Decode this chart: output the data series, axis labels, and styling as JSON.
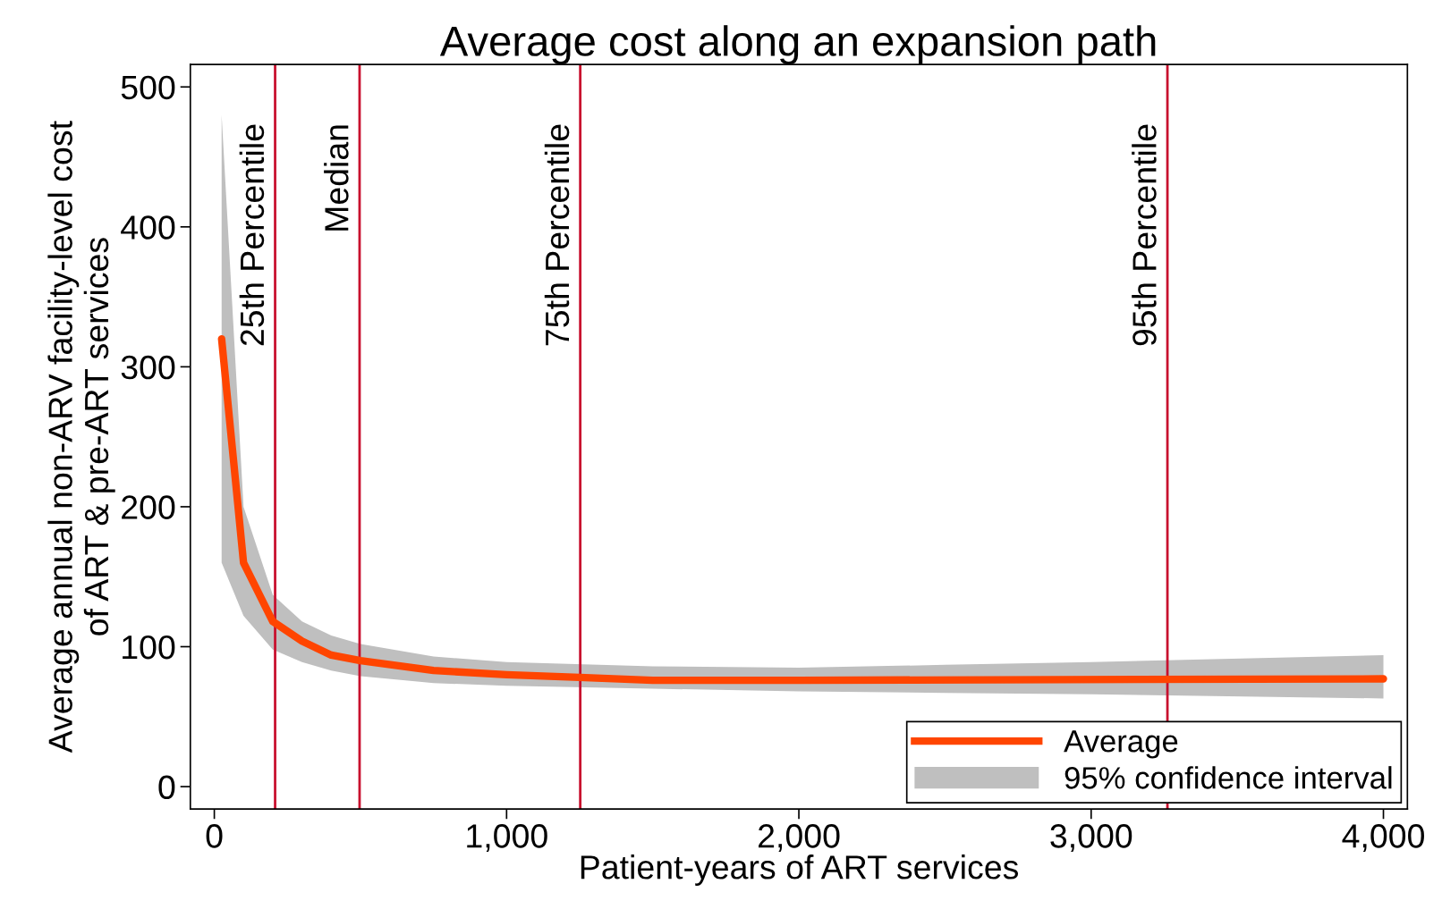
{
  "chart_data": {
    "type": "line",
    "title": "Average cost along an expansion path",
    "xlabel": "Patient-years of ART services",
    "ylabel": "Average annual non-ARV facility-level cost\nof ART & pre-ART services",
    "xlim": [
      -82,
      4082
    ],
    "ylim": [
      -16,
      516
    ],
    "xticks": [
      0,
      {
        "value": 1000,
        "label": "1,000"
      },
      {
        "value": 2000,
        "label": "2,000"
      },
      {
        "value": 3000,
        "label": "3,000"
      },
      {
        "value": 4000,
        "label": "4,000"
      }
    ],
    "yticks": [
      0,
      100,
      200,
      300,
      400,
      500
    ],
    "series": [
      {
        "type": "area",
        "name": "95% confidence interval",
        "color": "#bfbfbf",
        "x": [
          25,
          100,
          200,
          300,
          400,
          500,
          750,
          1000,
          1500,
          2000,
          2500,
          3000,
          4000
        ],
        "values": [
          null,
          null,
          null,
          null,
          null,
          null,
          null,
          null,
          null,
          null,
          null,
          null,
          null
        ],
        "lower": [
          160,
          122,
          98,
          89,
          83,
          79,
          74,
          72,
          70,
          68,
          67,
          66,
          63
        ],
        "upper": [
          480,
          200,
          137,
          118,
          108,
          102,
          93,
          89,
          86,
          85,
          87,
          89,
          94
        ]
      },
      {
        "name": "Average",
        "color": "#ff4500",
        "x": [
          25,
          100,
          200,
          300,
          400,
          500,
          750,
          1000,
          1250,
          1500,
          2000,
          4000
        ],
        "values": [
          320,
          160,
          118,
          104,
          94,
          90,
          83,
          80,
          78,
          76,
          76,
          77
        ]
      }
    ],
    "ref_lines": [
      {
        "axis": "x",
        "value": 208,
        "label": "25th Percentile",
        "color": "#c8102e"
      },
      {
        "axis": "x",
        "value": 497,
        "label": "Median",
        "color": "#c8102e"
      },
      {
        "axis": "x",
        "value": 1252,
        "label": "75th Percentile",
        "color": "#c8102e"
      },
      {
        "axis": "x",
        "value": 3261,
        "label": "95th Percentile",
        "color": "#c8102e"
      }
    ],
    "legend": "bottom right",
    "grid": false,
    "marker": "none",
    "line_style": "solid"
  }
}
